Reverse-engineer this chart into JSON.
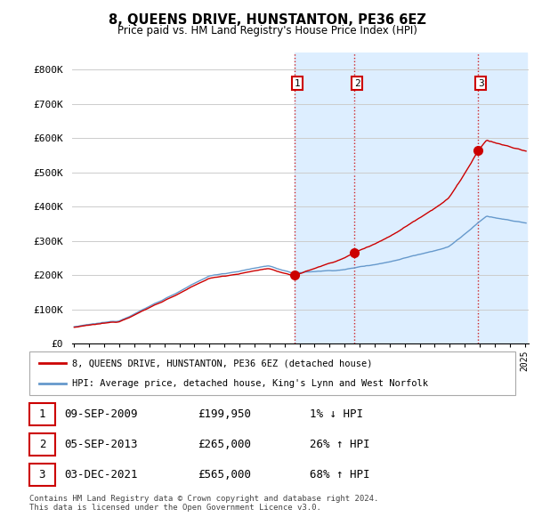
{
  "title": "8, QUEENS DRIVE, HUNSTANTON, PE36 6EZ",
  "subtitle": "Price paid vs. HM Land Registry's House Price Index (HPI)",
  "ylim": [
    0,
    850000
  ],
  "yticks": [
    0,
    100000,
    200000,
    300000,
    400000,
    500000,
    600000,
    700000,
    800000
  ],
  "ytick_labels": [
    "£0",
    "£100K",
    "£200K",
    "£300K",
    "£400K",
    "£500K",
    "£600K",
    "£700K",
    "£800K"
  ],
  "sale_dates_num": [
    2009.6944,
    2013.6722,
    2021.9167
  ],
  "sale_prices": [
    199950,
    265000,
    565000
  ],
  "sale_labels": [
    "1",
    "2",
    "3"
  ],
  "hpi_color": "#6699cc",
  "sale_color": "#cc0000",
  "shaded_color": "#ddeeff",
  "legend_entries": [
    "8, QUEENS DRIVE, HUNSTANTON, PE36 6EZ (detached house)",
    "HPI: Average price, detached house, King's Lynn and West Norfolk"
  ],
  "table_rows": [
    [
      "1",
      "09-SEP-2009",
      "£199,950",
      "1% ↓ HPI"
    ],
    [
      "2",
      "05-SEP-2013",
      "£265,000",
      "26% ↑ HPI"
    ],
    [
      "3",
      "03-DEC-2021",
      "£565,000",
      "68% ↑ HPI"
    ]
  ],
  "footnote": "Contains HM Land Registry data © Crown copyright and database right 2024.\nThis data is licensed under the Open Government Licence v3.0.",
  "bg_color": "#ffffff",
  "grid_color": "#cccccc"
}
